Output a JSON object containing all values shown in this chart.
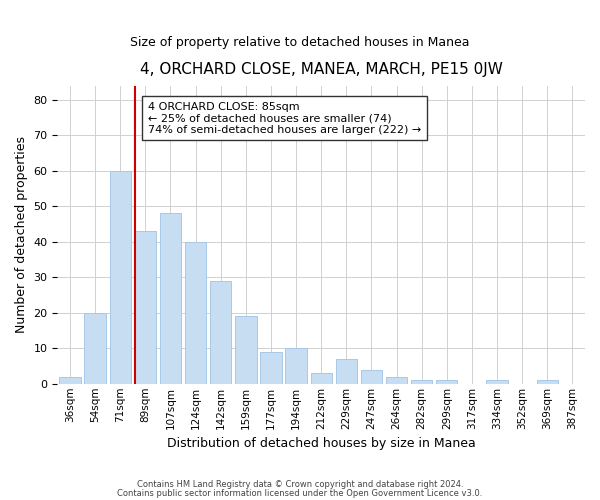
{
  "title": "4, ORCHARD CLOSE, MANEA, MARCH, PE15 0JW",
  "subtitle": "Size of property relative to detached houses in Manea",
  "xlabel": "Distribution of detached houses by size in Manea",
  "ylabel": "Number of detached properties",
  "bar_labels": [
    "36sqm",
    "54sqm",
    "71sqm",
    "89sqm",
    "107sqm",
    "124sqm",
    "142sqm",
    "159sqm",
    "177sqm",
    "194sqm",
    "212sqm",
    "229sqm",
    "247sqm",
    "264sqm",
    "282sqm",
    "299sqm",
    "317sqm",
    "334sqm",
    "352sqm",
    "369sqm",
    "387sqm"
  ],
  "bar_values": [
    2,
    20,
    60,
    43,
    48,
    40,
    29,
    19,
    9,
    10,
    3,
    7,
    4,
    2,
    1,
    1,
    0,
    1,
    0,
    1,
    0
  ],
  "bar_color": "#c7ddf2",
  "bar_edge_color": "#a8c8e8",
  "vline_color": "#cc0000",
  "vline_x": 2.575,
  "annotation_title": "4 ORCHARD CLOSE: 85sqm",
  "annotation_line1": "← 25% of detached houses are smaller (74)",
  "annotation_line2": "74% of semi-detached houses are larger (222) →",
  "ylim": [
    0,
    84
  ],
  "yticks": [
    0,
    10,
    20,
    30,
    40,
    50,
    60,
    70,
    80
  ],
  "footer1": "Contains HM Land Registry data © Crown copyright and database right 2024.",
  "footer2": "Contains public sector information licensed under the Open Government Licence v3.0."
}
